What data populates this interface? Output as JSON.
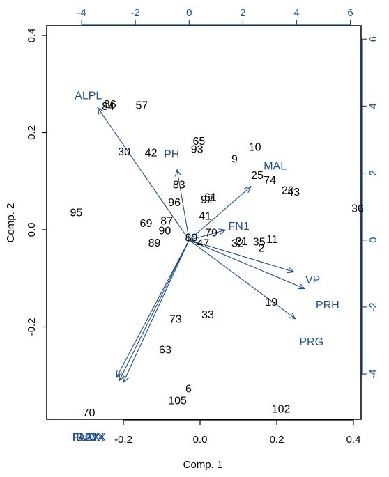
{
  "chart_data": {
    "type": "biplot",
    "xlabel": "Comp. 1",
    "ylabel": "Comp. 2",
    "colors": {
      "observations": "#000000",
      "variables": "#1f4e8c",
      "frame": "#000000"
    },
    "primary_axes": {
      "xlim": [
        -0.4,
        0.42
      ],
      "ylim": [
        -0.39,
        0.42
      ],
      "x_ticks": [
        "-0.2",
        "0.0",
        "0.2",
        "0.4"
      ],
      "y_ticks": [
        "-0.2",
        "0.0",
        "0.2",
        "0.4"
      ]
    },
    "secondary_axes": {
      "xlim": [
        -5.3,
        6.4
      ],
      "ylim": [
        -5.35,
        6.4
      ],
      "x_ticks": [
        "-4",
        "-2",
        "0",
        "2",
        "4",
        "6"
      ],
      "y_ticks": [
        "-4",
        "-2",
        "0",
        "2",
        "4",
        "6"
      ]
    },
    "observations": [
      {
        "label": "86",
        "x": -0.235,
        "y": 0.257
      },
      {
        "label": "84",
        "x": -0.24,
        "y": 0.253
      },
      {
        "label": "57",
        "x": -0.152,
        "y": 0.255
      },
      {
        "label": "30",
        "x": -0.198,
        "y": 0.16
      },
      {
        "label": "42",
        "x": -0.128,
        "y": 0.158
      },
      {
        "label": "65",
        "x": -0.003,
        "y": 0.181
      },
      {
        "label": "93",
        "x": -0.008,
        "y": 0.165
      },
      {
        "label": "10",
        "x": 0.143,
        "y": 0.169
      },
      {
        "label": "9",
        "x": 0.09,
        "y": 0.145
      },
      {
        "label": "25",
        "x": 0.149,
        "y": 0.111
      },
      {
        "label": "74",
        "x": 0.182,
        "y": 0.101
      },
      {
        "label": "20",
        "x": 0.229,
        "y": 0.08
      },
      {
        "label": "43",
        "x": 0.244,
        "y": 0.077
      },
      {
        "label": "83",
        "x": -0.055,
        "y": 0.092
      },
      {
        "label": "61",
        "x": 0.027,
        "y": 0.066
      },
      {
        "label": "92",
        "x": 0.018,
        "y": 0.061
      },
      {
        "label": "96",
        "x": -0.067,
        "y": 0.055
      },
      {
        "label": "41",
        "x": 0.013,
        "y": 0.027
      },
      {
        "label": "79",
        "x": 0.029,
        "y": -0.007
      },
      {
        "label": "95",
        "x": -0.323,
        "y": 0.034
      },
      {
        "label": "69",
        "x": -0.141,
        "y": 0.012
      },
      {
        "label": "87",
        "x": -0.087,
        "y": 0.017
      },
      {
        "label": "90",
        "x": -0.092,
        "y": -0.003
      },
      {
        "label": "80",
        "x": -0.023,
        "y": -0.017
      },
      {
        "label": "89",
        "x": -0.119,
        "y": -0.028
      },
      {
        "label": "47",
        "x": 0.008,
        "y": -0.029
      },
      {
        "label": "32",
        "x": 0.098,
        "y": -0.029
      },
      {
        "label": "21",
        "x": 0.108,
        "y": -0.025
      },
      {
        "label": "35",
        "x": 0.154,
        "y": -0.026
      },
      {
        "label": "11",
        "x": 0.188,
        "y": -0.021
      },
      {
        "label": "2",
        "x": 0.16,
        "y": -0.039
      },
      {
        "label": "36",
        "x": 0.411,
        "y": 0.043
      },
      {
        "label": "19",
        "x": 0.186,
        "y": -0.15
      },
      {
        "label": "73",
        "x": -0.064,
        "y": -0.185
      },
      {
        "label": "33",
        "x": 0.02,
        "y": -0.176
      },
      {
        "label": "63",
        "x": -0.091,
        "y": -0.248
      },
      {
        "label": "6",
        "x": -0.03,
        "y": -0.328
      },
      {
        "label": "105",
        "x": -0.059,
        "y": -0.353
      },
      {
        "label": "102",
        "x": 0.211,
        "y": -0.37
      },
      {
        "label": "70",
        "x": -0.29,
        "y": -0.378
      }
    ],
    "variables": [
      {
        "label": "ALPL",
        "x": -3.4,
        "y": 3.95,
        "label_x": -3.75,
        "label_y": 4.3
      },
      {
        "label": "PH",
        "x": -0.45,
        "y": 2.1,
        "label_x": -0.65,
        "label_y": 2.55
      },
      {
        "label": "MAL",
        "x": 2.3,
        "y": 1.6,
        "label_x": 3.2,
        "label_y": 2.2
      },
      {
        "label": "FN1",
        "x": 1.35,
        "y": 0.3,
        "label_x": 1.85,
        "label_y": 0.4
      },
      {
        "label": "VP",
        "x": 3.9,
        "y": -0.95,
        "label_x": 4.6,
        "label_y": -1.2
      },
      {
        "label": "PRH",
        "x": 4.3,
        "y": -1.45,
        "label_x": 5.15,
        "label_y": -1.95
      },
      {
        "label": "PRG",
        "x": 3.95,
        "y": -2.35,
        "label_x": 4.55,
        "label_y": -3.05
      },
      {
        "label": "DAYX",
        "x": -2.7,
        "y": -4.1,
        "label_x": -3.65,
        "label_y": -5.9
      },
      {
        "label": "FUMX",
        "x": -2.6,
        "y": -4.2,
        "label_x": -3.75,
        "label_y": -5.9
      },
      {
        "label": "PAZX",
        "x": -2.45,
        "y": -4.25,
        "label_x": -3.85,
        "label_y": -5.9
      }
    ]
  }
}
